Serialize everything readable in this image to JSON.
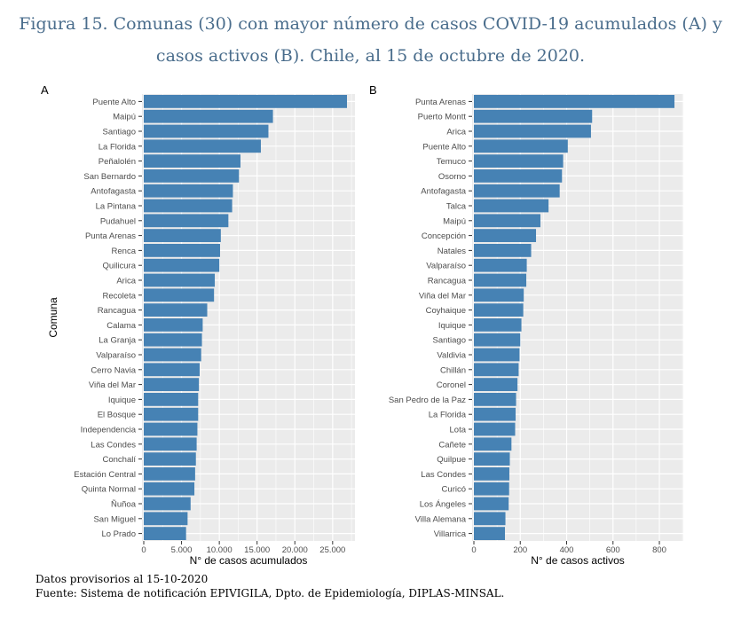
{
  "title_line1": "Figura 15. Comunas (30) con mayor número de casos COVID-19 acumulados (A) y",
  "title_line2": "casos activos (B). Chile, al 15 de octubre de 2020.",
  "footer_line1": "Datos provisorios al 15-10-2020",
  "footer_line2": "Fuente: Sistema de notificación EPIVIGILA, Dpto. de Epidemiología, DIPLAS-MINSAL.",
  "colors": {
    "bar": "#4682b4",
    "panel": "#ebebeb",
    "grid": "#ffffff"
  },
  "chart_data": [
    {
      "type": "bar",
      "orientation": "horizontal",
      "panel_label": "A",
      "xlabel": "N° de casos acumulados",
      "ylabel": "Comuna",
      "xlim": [
        0,
        26900
      ],
      "xticks": [
        0,
        5000,
        10000,
        15000,
        20000,
        25000
      ],
      "xtick_labels": [
        "0",
        "5.000",
        "10.000",
        "15.000",
        "20.000",
        "25.000"
      ],
      "grid": true,
      "categories": [
        "Puente Alto",
        "Maipú",
        "Santiago",
        "La Florida",
        "Peñalolén",
        "San Bernardo",
        "Antofagasta",
        "La Pintana",
        "Pudahuel",
        "Punta Arenas",
        "Renca",
        "Quilicura",
        "Arica",
        "Recoleta",
        "Rancagua",
        "Calama",
        "La Granja",
        "Valparaíso",
        "Cerro Navia",
        "Viña del Mar",
        "Iquique",
        "El Bosque",
        "Independencia",
        "Las Condes",
        "Conchalí",
        "Estación Central",
        "Quinta Normal",
        "Ñuñoa",
        "San Miguel",
        "Lo Prado"
      ],
      "values": [
        26900,
        17100,
        16500,
        15500,
        12800,
        12600,
        11800,
        11700,
        11200,
        10200,
        10100,
        10000,
        9400,
        9300,
        8400,
        7800,
        7700,
        7600,
        7400,
        7300,
        7200,
        7200,
        7100,
        7000,
        6900,
        6800,
        6700,
        6200,
        5800,
        5600
      ]
    },
    {
      "type": "bar",
      "orientation": "horizontal",
      "panel_label": "B",
      "xlabel": "N° de casos activos",
      "ylabel": "",
      "xlim": [
        0,
        865
      ],
      "xticks": [
        0,
        200,
        400,
        600,
        800
      ],
      "xtick_labels": [
        "0",
        "200",
        "400",
        "600",
        "800"
      ],
      "grid": true,
      "categories": [
        "Punta Arenas",
        "Puerto Montt",
        "Arica",
        "Puente Alto",
        "Temuco",
        "Osorno",
        "Antofagasta",
        "Talca",
        "Maipú",
        "Concepción",
        "Natales",
        "Valparaíso",
        "Rancagua",
        "Viña del Mar",
        "Coyhaique",
        "Iquique",
        "Santiago",
        "Valdivia",
        "Chillán",
        "Coronel",
        "San Pedro de la Paz",
        "La Florida",
        "Lota",
        "Cañete",
        "Quilpue",
        "Las Condes",
        "Curicó",
        "Los Ángeles",
        "Villa Alemana",
        "Villarrica"
      ],
      "values": [
        865,
        510,
        505,
        405,
        385,
        380,
        370,
        322,
        287,
        268,
        247,
        228,
        226,
        215,
        213,
        205,
        200,
        197,
        193,
        188,
        182,
        180,
        178,
        162,
        155,
        153,
        152,
        150,
        136,
        134
      ]
    }
  ]
}
